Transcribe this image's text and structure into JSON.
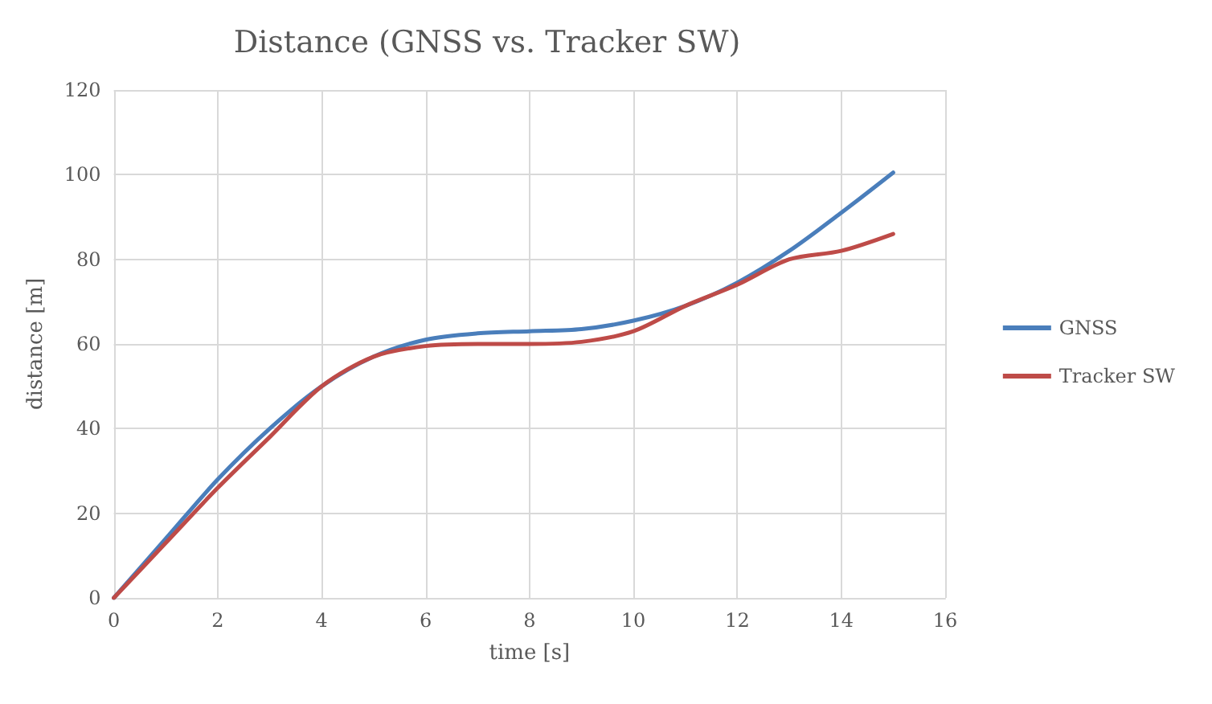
{
  "chart_data": {
    "type": "line",
    "title": "Distance (GNSS vs. Tracker SW)",
    "xlabel": "time [s]",
    "ylabel": "distance [m]",
    "x": [
      0,
      1,
      2,
      3,
      4,
      5,
      6,
      7,
      8,
      9,
      10,
      11,
      12,
      13,
      14,
      15
    ],
    "series": [
      {
        "name": "GNSS",
        "color": "#4a7ebb",
        "values": [
          0,
          14,
          28,
          40,
          50,
          57,
          61,
          62.5,
          63,
          63.5,
          65.5,
          69,
          74.5,
          82,
          91,
          100.5
        ]
      },
      {
        "name": "Tracker SW",
        "color": "#be4b48",
        "values": [
          0,
          13,
          26,
          38,
          50,
          57,
          59.5,
          60,
          60,
          60.5,
          63,
          69,
          74,
          80,
          82,
          86
        ]
      }
    ],
    "xlim": [
      0,
      16
    ],
    "xticks": [
      0,
      2,
      4,
      6,
      8,
      10,
      12,
      14,
      16
    ],
    "ylim": [
      0,
      120
    ],
    "yticks": [
      0,
      20,
      40,
      60,
      80,
      100,
      120
    ],
    "grid": true,
    "legend": "right",
    "marker": "none",
    "line_style": "solid"
  }
}
